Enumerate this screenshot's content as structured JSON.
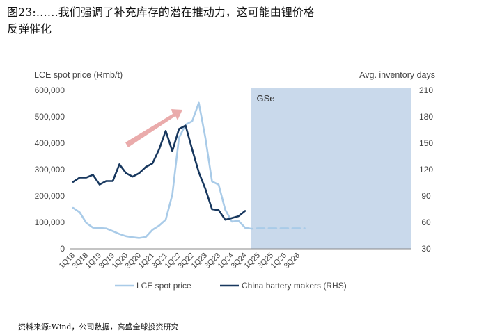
{
  "header": {
    "title_line1": "图23:……我们强调了补充库存的潜在推动力，这可能由锂价格",
    "title_line2": "反弹催化"
  },
  "footer": {
    "source": "资料来源:Wind，公司数据，高盛全球投资研究"
  },
  "chart_data": {
    "type": "line",
    "left_axis_label": "LCE spot price (Rmb/t)",
    "right_axis_label": "Avg. inventory days",
    "left_ylim": [
      0,
      600000
    ],
    "right_ylim": [
      30,
      210
    ],
    "left_ticks": [
      "600,000",
      "500,000",
      "400,000",
      "300,000",
      "200,000",
      "100,000",
      "0"
    ],
    "right_ticks": [
      "210",
      "180",
      "150",
      "120",
      "90",
      "60",
      "30"
    ],
    "x_tick_labels": [
      "1Q18",
      "3Q18",
      "1Q19",
      "3Q19",
      "1Q20",
      "3Q20",
      "1Q21",
      "3Q21",
      "1Q22",
      "3Q22",
      "1Q23",
      "3Q23",
      "1Q24",
      "3Q24",
      "1Q25",
      "3Q25",
      "1Q26",
      "3Q26"
    ],
    "forecast_label": "GSe",
    "forecast_start": "4Q24",
    "legend_position": "bottom",
    "series": [
      {
        "name": "LCE spot price",
        "axis": "left",
        "color": "#a9cbe8",
        "style": "solid",
        "points": [
          [
            "1Q18",
            155000
          ],
          [
            "2Q18",
            138000
          ],
          [
            "3Q18",
            98000
          ],
          [
            "4Q18",
            80000
          ],
          [
            "1Q19",
            79000
          ],
          [
            "2Q19",
            77000
          ],
          [
            "3Q19",
            67000
          ],
          [
            "4Q19",
            56000
          ],
          [
            "1Q20",
            48000
          ],
          [
            "2Q20",
            44000
          ],
          [
            "3Q20",
            41000
          ],
          [
            "4Q20",
            45000
          ],
          [
            "1Q21",
            72000
          ],
          [
            "2Q21",
            88000
          ],
          [
            "3Q21",
            110000
          ],
          [
            "4Q21",
            205000
          ],
          [
            "1Q22",
            420000
          ],
          [
            "2Q22",
            470000
          ],
          [
            "3Q22",
            483000
          ],
          [
            "4Q22",
            553000
          ],
          [
            "1Q23",
            420000
          ],
          [
            "2Q23",
            255000
          ],
          [
            "3Q23",
            243000
          ],
          [
            "4Q23",
            148000
          ],
          [
            "1Q24",
            103000
          ],
          [
            "2Q24",
            106000
          ],
          [
            "3Q24",
            80000
          ]
        ]
      },
      {
        "name": "LCE spot price (GSe)",
        "axis": "left",
        "color": "#a9cbe8",
        "style": "dashed",
        "points": [
          [
            "3Q24",
            80000
          ],
          [
            "4Q24",
            76000
          ],
          [
            "1Q25",
            78000
          ],
          [
            "2Q25",
            78000
          ],
          [
            "3Q25",
            78000
          ],
          [
            "4Q25",
            78000
          ],
          [
            "1Q26",
            78000
          ],
          [
            "2Q26",
            78000
          ],
          [
            "3Q26",
            78000
          ],
          [
            "4Q26",
            78000
          ]
        ]
      },
      {
        "name": "China battery makers (RHS)",
        "axis": "right",
        "color": "#17375e",
        "style": "solid",
        "points": [
          [
            "1Q18",
            106
          ],
          [
            "2Q18",
            111
          ],
          [
            "3Q18",
            111
          ],
          [
            "4Q18",
            114
          ],
          [
            "1Q19",
            103
          ],
          [
            "2Q19",
            107
          ],
          [
            "3Q19",
            107
          ],
          [
            "4Q19",
            126
          ],
          [
            "1Q20",
            116
          ],
          [
            "2Q20",
            112
          ],
          [
            "3Q20",
            116
          ],
          [
            "4Q20",
            123
          ],
          [
            "1Q21",
            127
          ],
          [
            "2Q21",
            143
          ],
          [
            "3Q21",
            164
          ],
          [
            "4Q21",
            141
          ],
          [
            "1Q22",
            166
          ],
          [
            "2Q22",
            170
          ],
          [
            "3Q22",
            143
          ],
          [
            "4Q22",
            117
          ],
          [
            "1Q23",
            98
          ],
          [
            "2Q23",
            75
          ],
          [
            "3Q23",
            74
          ],
          [
            "4Q23",
            63
          ],
          [
            "1Q24",
            65
          ],
          [
            "2Q24",
            67
          ],
          [
            "3Q24",
            73
          ]
        ]
      }
    ]
  }
}
